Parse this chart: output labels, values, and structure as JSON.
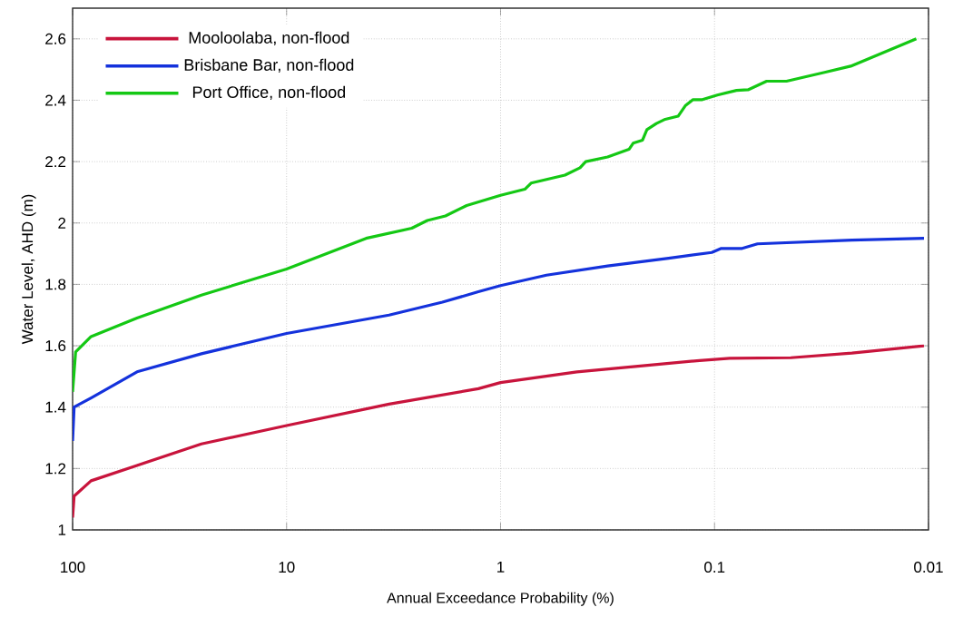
{
  "chart_data": {
    "type": "line",
    "xlabel": "Annual Exceedance Probability (%)",
    "ylabel": "Water Level, AHD (m)",
    "log": "x",
    "xlim": [
      100,
      0.01
    ],
    "xticks": [
      100,
      10,
      1,
      0.1,
      0.01
    ],
    "ylim": [
      1,
      2.7
    ],
    "yticks": [
      1,
      1.2,
      1.4,
      1.6,
      1.8,
      2,
      2.2,
      2.4,
      2.6
    ],
    "grid": true,
    "legend": "top left",
    "marker": "none",
    "line_style": "solid",
    "series": [
      {
        "name": "Mooloolaba, non-flood",
        "color": "#c8143c",
        "x": [
          100,
          98.4,
          82,
          50,
          25,
          10,
          3.32,
          1.27,
          1,
          0.44,
          0.228,
          0.1175,
          0.085,
          0.044,
          0.0228,
          0.0105
        ],
        "values": [
          1.04,
          1.11,
          1.16,
          1.21,
          1.28,
          1.34,
          1.41,
          1.46,
          1.48,
          1.515,
          1.533,
          1.552,
          1.559,
          1.561,
          1.576,
          1.6
        ]
      },
      {
        "name": "Brisbane Bar, non-flood",
        "color": "#1432dc",
        "x": [
          100,
          98.4,
          82,
          50,
          25,
          10,
          3.32,
          1.87,
          1.27,
          1,
          0.61,
          0.316,
          0.164,
          0.103,
          0.093,
          0.0743,
          0.063,
          0.0228,
          0.0105
        ],
        "values": [
          1.29,
          1.4,
          1.43,
          1.515,
          1.574,
          1.64,
          1.7,
          1.742,
          1.776,
          1.796,
          1.83,
          1.86,
          1.885,
          1.904,
          1.917,
          1.917,
          1.932,
          1.944,
          1.95
        ]
      },
      {
        "name": "Port Office, non-flood",
        "color": "#14c814",
        "x": [
          100,
          96.8,
          82,
          50,
          25,
          10,
          4.25,
          2.6,
          2.2,
          1.81,
          1.44,
          1,
          0.77,
          0.72,
          0.5,
          0.425,
          0.4,
          0.316,
          0.251,
          0.24,
          0.217,
          0.207,
          0.187,
          0.17,
          0.148,
          0.137,
          0.126,
          0.114,
          0.097,
          0.079,
          0.0697,
          0.0571,
          0.0461,
          0.0306,
          0.0231,
          0.0114
        ],
        "values": [
          1.45,
          1.58,
          1.63,
          1.69,
          1.765,
          1.85,
          1.95,
          1.983,
          2.008,
          2.023,
          2.057,
          2.09,
          2.11,
          2.13,
          2.156,
          2.18,
          2.2,
          2.215,
          2.24,
          2.26,
          2.27,
          2.304,
          2.324,
          2.338,
          2.348,
          2.382,
          2.402,
          2.402,
          2.417,
          2.432,
          2.434,
          2.462,
          2.462,
          2.491,
          2.511,
          2.6
        ]
      }
    ]
  }
}
